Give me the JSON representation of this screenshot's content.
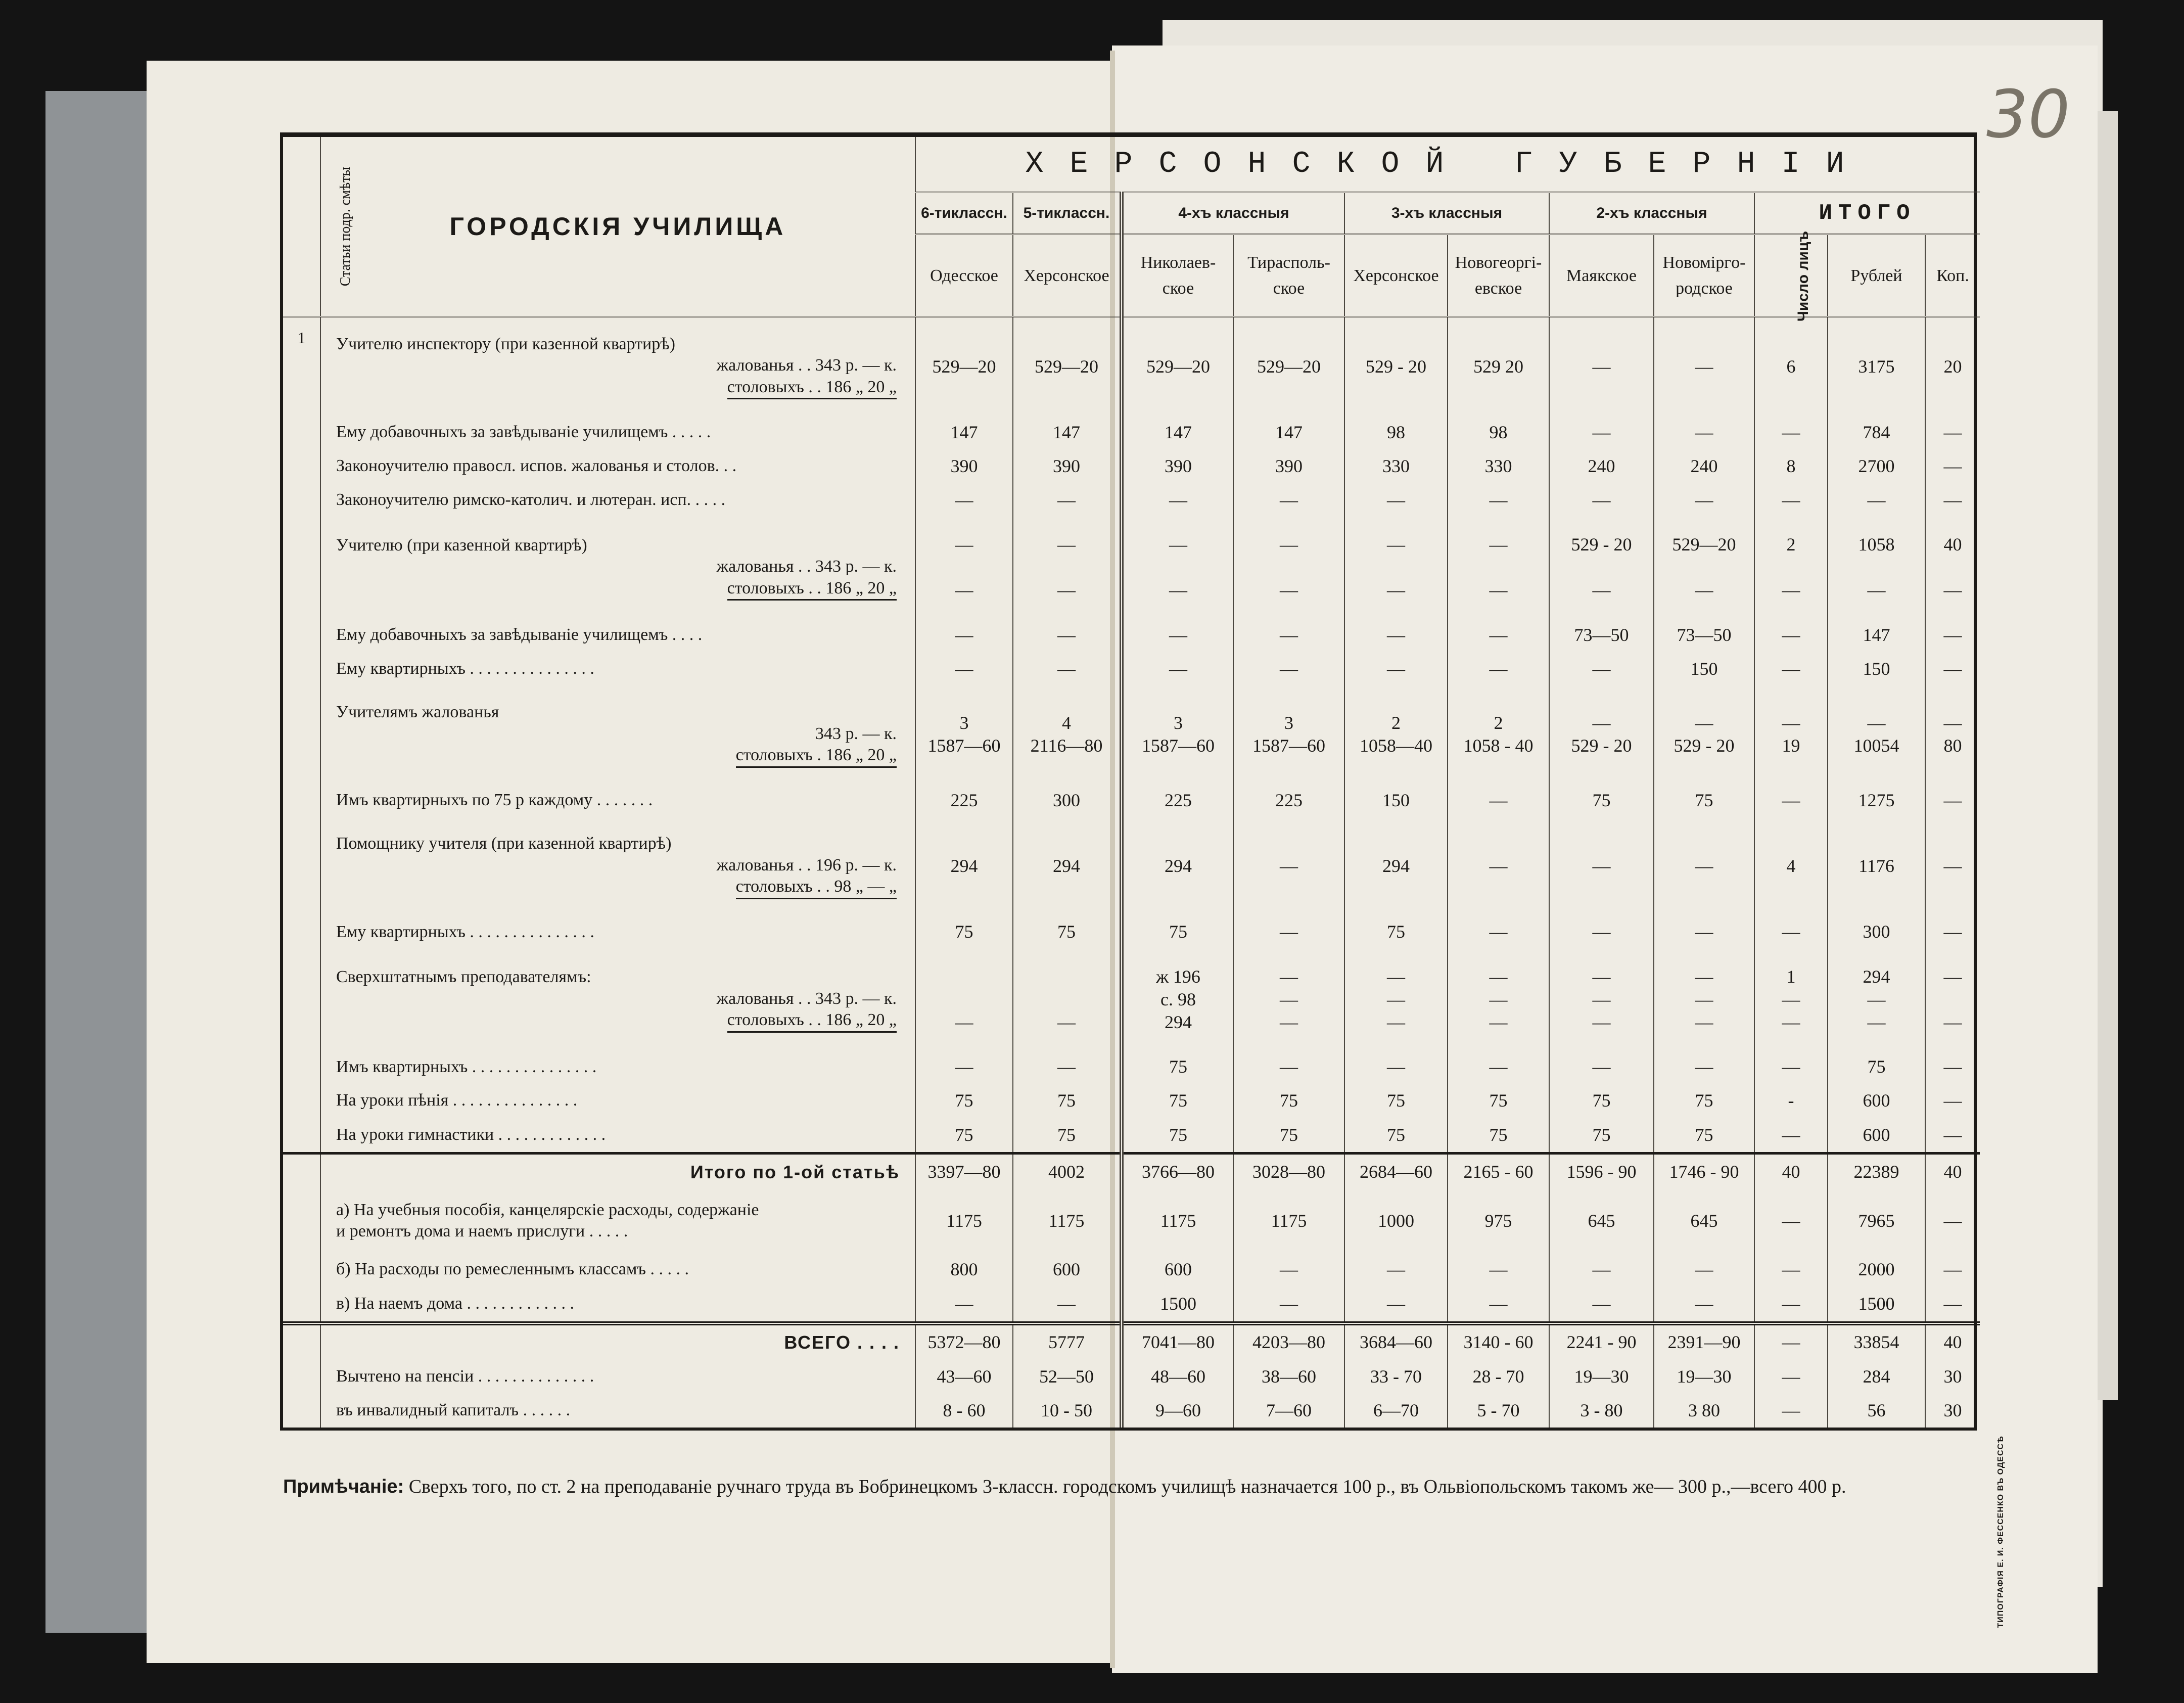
{
  "page_number": "30",
  "header": {
    "articles_col": "Статьи подр. смѣты",
    "title": "ГОРОДСКІЯ УЧИЛИЩА",
    "province": "ХЕРСОНСКОЙ ГУБЕРНІИ",
    "groups": [
      "6-тиклассн.",
      "5-тиклассн.",
      "4-хъ классныя",
      "3-хъ классныя",
      "2-хъ классныя",
      "ИТОГО"
    ],
    "columns": [
      "Одесское",
      "Херсонское",
      "Николаев-\nское",
      "Тирасполь-\nское",
      "Херсонское",
      "Новогеоргі-\nевское",
      "Маякское",
      "Новоміргo-\nродское",
      "Число лицъ",
      "Рублей",
      "Коп."
    ]
  },
  "rows": [
    {
      "article": "1",
      "label": "Учителю инспектору (при казенной квартирѣ)",
      "sub": [
        "жалованья  .  .  343 р. — к.",
        "столовыхъ  .  .  186 „  20 „"
      ],
      "values": [
        "529—20",
        "529—20",
        "529—20",
        "529—20",
        "529 - 20",
        "529  20",
        "—",
        "—",
        "6",
        "3175",
        "20"
      ]
    },
    {
      "label": "Ему добавочныхъ за завѣдываніе училищемъ . . . . .",
      "values": [
        "147",
        "147",
        "147",
        "147",
        "98",
        "98",
        "—",
        "—",
        "—",
        "784",
        "—"
      ]
    },
    {
      "label": "Законоучителю правосл. испов. жалованья и столов. . .",
      "values": [
        "390",
        "390",
        "390",
        "390",
        "330",
        "330",
        "240",
        "240",
        "8",
        "2700",
        "—"
      ]
    },
    {
      "label": "Законоучителю римско-католич. и лютеран. исп. . . . .",
      "values": [
        "—",
        "—",
        "—",
        "—",
        "—",
        "—",
        "—",
        "—",
        "—",
        "—",
        "—"
      ]
    },
    {
      "label": "Учителю (при казенной квартирѣ)",
      "sub": [
        "жалованья  .  .  343 р. — к.",
        "столовыхъ  .  .  186 „  20 „"
      ],
      "values": [
        "—\n\n—",
        "—\n\n—",
        "—\n\n—",
        "—\n\n—",
        "—\n\n—",
        "—\n\n—",
        "529 - 20\n\n—",
        "529—20\n\n—",
        "2\n\n—",
        "1058\n\n—",
        "40\n\n—"
      ]
    },
    {
      "label": "Ему добавочныхъ за завѣдываніе училищемъ . . . .",
      "values": [
        "—",
        "—",
        "—",
        "—",
        "—",
        "—",
        "73—50",
        "73—50",
        "—",
        "147",
        "—"
      ]
    },
    {
      "label": "Ему квартирныхъ . . . . . . . . . . . . . . .",
      "values": [
        "—",
        "—",
        "—",
        "—",
        "—",
        "—",
        "—",
        "150",
        "—",
        "150",
        "—"
      ]
    },
    {
      "label": "Учителямъ жалованья",
      "sub": [
        "343 р. — к.",
        "столовыхъ  .  186 „  20 „"
      ],
      "values": [
        "3\n1587—60",
        "4\n2116—80",
        "3\n1587—60",
        "3\n1587—60",
        "2\n1058—40",
        "2\n1058 - 40",
        "—\n529 - 20",
        "—\n529 - 20",
        "—\n19",
        "—\n10054",
        "—\n80"
      ]
    },
    {
      "label": "Имъ квартирныхъ по 75 р каждому . . . . . . .",
      "values": [
        "225",
        "300",
        "225",
        "225",
        "150",
        "—",
        "75",
        "75",
        "—",
        "1275",
        "—"
      ]
    },
    {
      "label": "Помощнику учителя (при казенной квартирѣ)",
      "sub": [
        "жалованья  .  .  196 р. — к.",
        "столовыхъ  .  .  98 „  — „"
      ],
      "values": [
        "294",
        "294",
        "294",
        "—",
        "294",
        "—",
        "—",
        "—",
        "4",
        "1176",
        "—"
      ]
    },
    {
      "label": "Ему квартирныхъ . . . . . . . . . . . . . . .",
      "values": [
        "75",
        "75",
        "75",
        "—",
        "75",
        "—",
        "—",
        "—",
        "—",
        "300",
        "—"
      ]
    },
    {
      "label": "Сверхштатнымъ преподавателямъ:",
      "sub": [
        "жалованья  .  .  343 р. — к.",
        "столовыхъ  .  .  186 „  20 „"
      ],
      "values": [
        "\n\n—",
        "\n\n—",
        "ж 196\nс.  98\n294",
        "—\n—\n—",
        "—\n—\n—",
        "—\n—\n—",
        "—\n—\n—",
        "—\n—\n—",
        "1\n—\n—",
        "294\n—\n—",
        "—\n\n—"
      ]
    },
    {
      "label": "Имъ квартирныхъ . . . . . . . . . . . . . . .",
      "values": [
        "—",
        "—",
        "75",
        "—",
        "—",
        "—",
        "—",
        "—",
        "—",
        "75",
        "—"
      ]
    },
    {
      "label": "На уроки пѣнія . . . . . . . . . . . . . . .",
      "values": [
        "75",
        "75",
        "75",
        "75",
        "75",
        "75",
        "75",
        "75",
        "-",
        "600",
        "—"
      ]
    },
    {
      "label": "На уроки гимнастики . . . . . . . . . . . . .",
      "values": [
        "75",
        "75",
        "75",
        "75",
        "75",
        "75",
        "75",
        "75",
        "—",
        "600",
        "—"
      ]
    },
    {
      "label": "Итого по 1-ой статьѣ",
      "bold": true,
      "sep": "top",
      "values": [
        "3397—80",
        "4002",
        "3766—80",
        "3028—80",
        "2684—60",
        "2165 - 60",
        "1596 - 90",
        "1746 - 90",
        "40",
        "22389",
        "40"
      ]
    },
    {
      "label": "а) На учебныя пособія, канцелярскіе расходы, содержаніе\n      и ремонтъ дома и наемъ прислуги . . . . .",
      "values": [
        "1175",
        "1175",
        "1175",
        "1175",
        "1000",
        "975",
        "645",
        "645",
        "—",
        "7965",
        "—"
      ]
    },
    {
      "label": "б) На расходы по ремесленнымъ классамъ . . . . .",
      "values": [
        "800",
        "600",
        "600",
        "—",
        "—",
        "—",
        "—",
        "—",
        "—",
        "2000",
        "—"
      ]
    },
    {
      "label": "в) На наемъ дома . . . . . . . . . . . . .",
      "values": [
        "—",
        "—",
        "1500",
        "—",
        "—",
        "—",
        "—",
        "—",
        "—",
        "1500",
        "—"
      ]
    },
    {
      "label": "ВСЕГО . . . .",
      "bold": true,
      "sep": "dbl",
      "values": [
        "5372—80",
        "5777",
        "7041—80",
        "4203—80",
        "3684—60",
        "3140 - 60",
        "2241 - 90",
        "2391—90",
        "—",
        "33854",
        "40"
      ]
    },
    {
      "label": "Вычтено на пенсіи . . . . . . . . . . . . . .",
      "values": [
        "43—60",
        "52—50",
        "48—60",
        "38—60",
        "33 - 70",
        "28 - 70",
        "19—30",
        "19—30",
        "—",
        "284",
        "30"
      ]
    },
    {
      "label": "                    въ инвалидный капиталъ . . . . . .",
      "values": [
        "8 - 60",
        "10 - 50",
        "9—60",
        "7—60",
        "6—70",
        "5 - 70",
        "3 - 80",
        "3  80",
        "—",
        "56",
        "30"
      ]
    }
  ],
  "note": {
    "label": "Примѣчаніе:",
    "text": "Сверхъ того, по ст. 2 на преподаваніе ручнаго труда въ Бобринецкомъ 3-классн. городскомъ училищѣ назначается 100 р., въ Ольвіопольскомъ такомъ же— 300 р.,—всего 400 р."
  },
  "printer_mark": "ТИПОГРАФІЯ Е. И. ФЕССЕНКО ВЪ ОДЕССѢ",
  "colors": {
    "paper": "#eeebe2",
    "ink": "#1c1a17",
    "background": "#141414"
  }
}
